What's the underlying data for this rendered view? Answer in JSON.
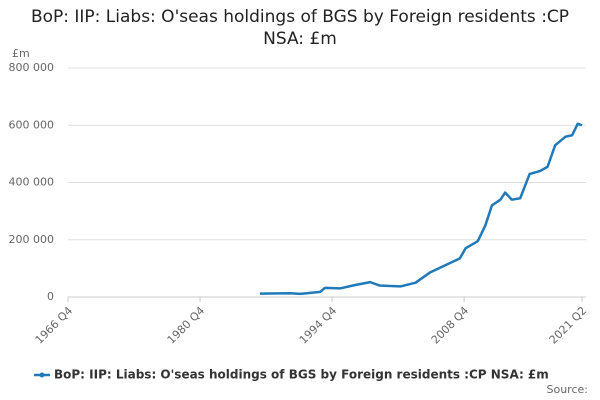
{
  "chart_data": {
    "type": "line",
    "title": "BoP: IIP: Liabs: O'seas holdings of BGS by Foreign residents :CP NSA: £m",
    "y_label": "£m",
    "source": "Source:",
    "x": [
      1987.1,
      1990.3,
      1991.4,
      1993.5,
      1994.0,
      1995.6,
      1997.2,
      1998.8,
      1999.8,
      2002.0,
      2003.6,
      2005.1,
      2006.7,
      2008.3,
      2008.9,
      2010.2,
      2011.0,
      2011.7,
      2012.6,
      2013.1,
      2013.8,
      2014.7,
      2015.7,
      2016.8,
      2017.6,
      2018.4,
      2019.5,
      2020.2,
      2020.8,
      2021.25
    ],
    "series": [
      {
        "name": "BoP: IIP: Liabs: O'seas holdings of BGS by Foreign residents :CP NSA: £m",
        "color": "#2079b8",
        "values": [
          12000,
          13000,
          11000,
          18000,
          32000,
          30000,
          42000,
          52000,
          40000,
          37000,
          50000,
          85000,
          110000,
          135000,
          170000,
          195000,
          250000,
          320000,
          340000,
          365000,
          340000,
          345000,
          430000,
          440000,
          455000,
          530000,
          560000,
          565000,
          605000,
          600000
        ]
      }
    ],
    "xlim": [
      1966.75,
      2021.25
    ],
    "xticks": [
      {
        "value": 1966.75,
        "label": "1966 Q4"
      },
      {
        "value": 1980.75,
        "label": "1980 Q4"
      },
      {
        "value": 1994.75,
        "label": "1994 Q4"
      },
      {
        "value": 2008.75,
        "label": "2008 Q4"
      },
      {
        "value": 2021.25,
        "label": "2021 Q2"
      }
    ],
    "ylim": [
      0,
      800000
    ],
    "yticks": [
      0,
      {
        "value": 200000,
        "label": "200 000"
      },
      {
        "value": 400000,
        "label": "400 000"
      },
      {
        "value": 600000,
        "label": "600 000"
      },
      {
        "value": 800000,
        "label": "800 000"
      }
    ],
    "grid": true
  }
}
